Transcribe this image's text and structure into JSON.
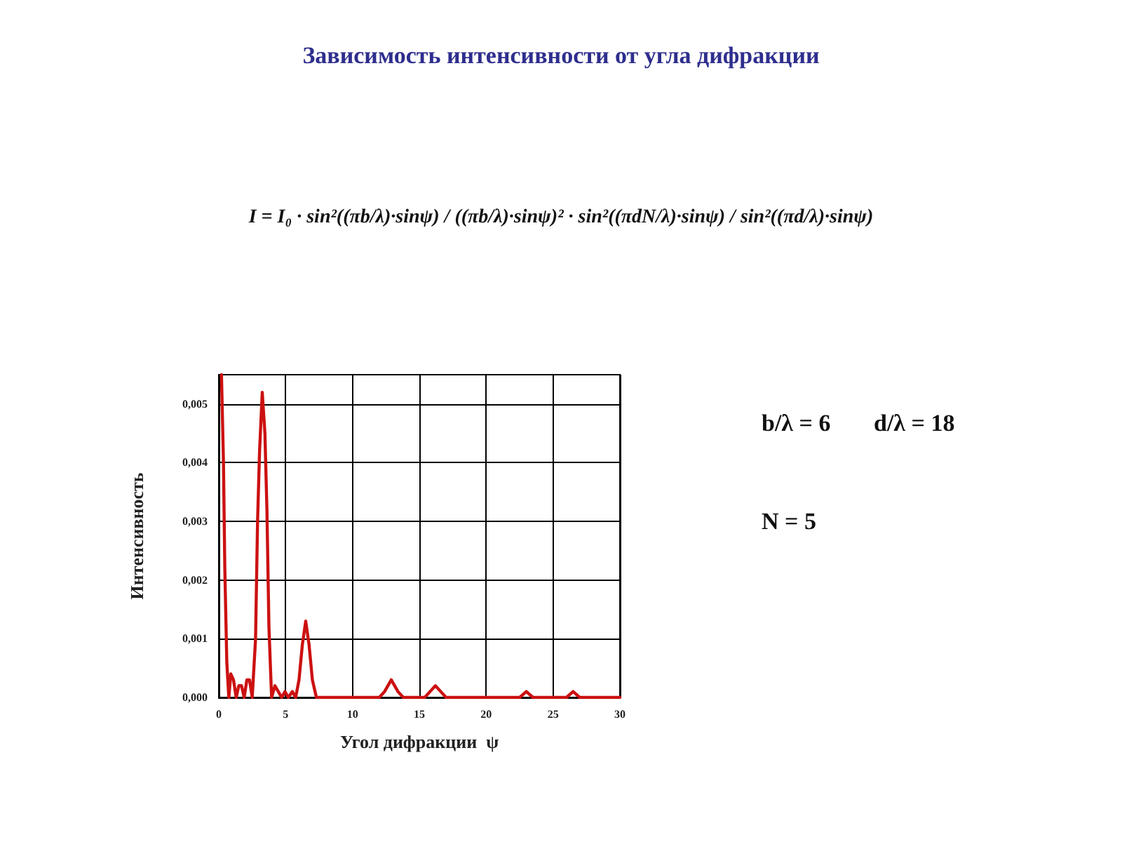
{
  "chart_data": {
    "type": "line",
    "title": "Зависимость интенсивности от угла дифракции",
    "xlabel": "Угол дифракции  ψ",
    "ylabel": "Интенсивность",
    "annotations": [
      "I = I₀ · sin²((πb/λ)·sinψ) / ((πb/λ)·sinψ)² · sin²((πdN/λ)·sinψ) / sin²((πd/λ)·sinψ)",
      "b/λ = 6",
      "d/λ = 18",
      "N = 5"
    ],
    "x": [
      0.2,
      0.35,
      0.45,
      0.6,
      0.75,
      0.9,
      1.1,
      1.3,
      1.5,
      1.7,
      1.9,
      2.1,
      2.3,
      2.5,
      2.75,
      2.9,
      3.05,
      3.25,
      3.45,
      3.6,
      3.75,
      3.95,
      4.2,
      4.45,
      4.7,
      4.95,
      5.2,
      5.5,
      5.75,
      6.0,
      6.25,
      6.5,
      6.75,
      7.0,
      7.3,
      12.0,
      12.4,
      12.9,
      13.4,
      13.8,
      15.4,
      15.8,
      16.2,
      16.6,
      17.0,
      22.5,
      23.0,
      23.5,
      26.0,
      26.5,
      27.0,
      30.0
    ],
    "series": [
      {
        "color": "#cc1111",
        "values": [
          0.0055,
          0.004,
          0.0022,
          0.0006,
          0.0,
          0.0004,
          0.0003,
          0.0,
          0.0002,
          0.0002,
          0.0,
          0.0003,
          0.0003,
          0.0,
          0.001,
          0.003,
          0.0042,
          0.0052,
          0.0045,
          0.0032,
          0.0012,
          0.0,
          0.0002,
          0.0001,
          0.0,
          0.0001,
          0.0,
          0.0001,
          0.0,
          0.0003,
          0.0009,
          0.0013,
          0.0009,
          0.0003,
          0.0,
          0.0,
          0.0001,
          0.0003,
          0.0001,
          0.0,
          0.0,
          0.0001,
          0.0002,
          0.0001,
          0.0,
          0.0,
          0.0001,
          0.0,
          0.0,
          0.0001,
          0.0,
          0.0
        ]
      }
    ],
    "xlim": [
      0,
      30
    ],
    "xticks": [
      0,
      5,
      10,
      15,
      20,
      25,
      30
    ],
    "ylim": [
      0,
      0.0055
    ],
    "yticks": [
      {
        "value": 0,
        "label": "0,000"
      },
      {
        "value": 0.001,
        "label": "0,001"
      },
      {
        "value": 0.002,
        "label": "0,002"
      },
      {
        "value": 0.003,
        "label": "0,003"
      },
      {
        "value": 0.004,
        "label": "0,004"
      },
      {
        "value": 0.005,
        "label": "0,005"
      }
    ],
    "grid": true,
    "marker": "none",
    "line_style": "solid"
  }
}
